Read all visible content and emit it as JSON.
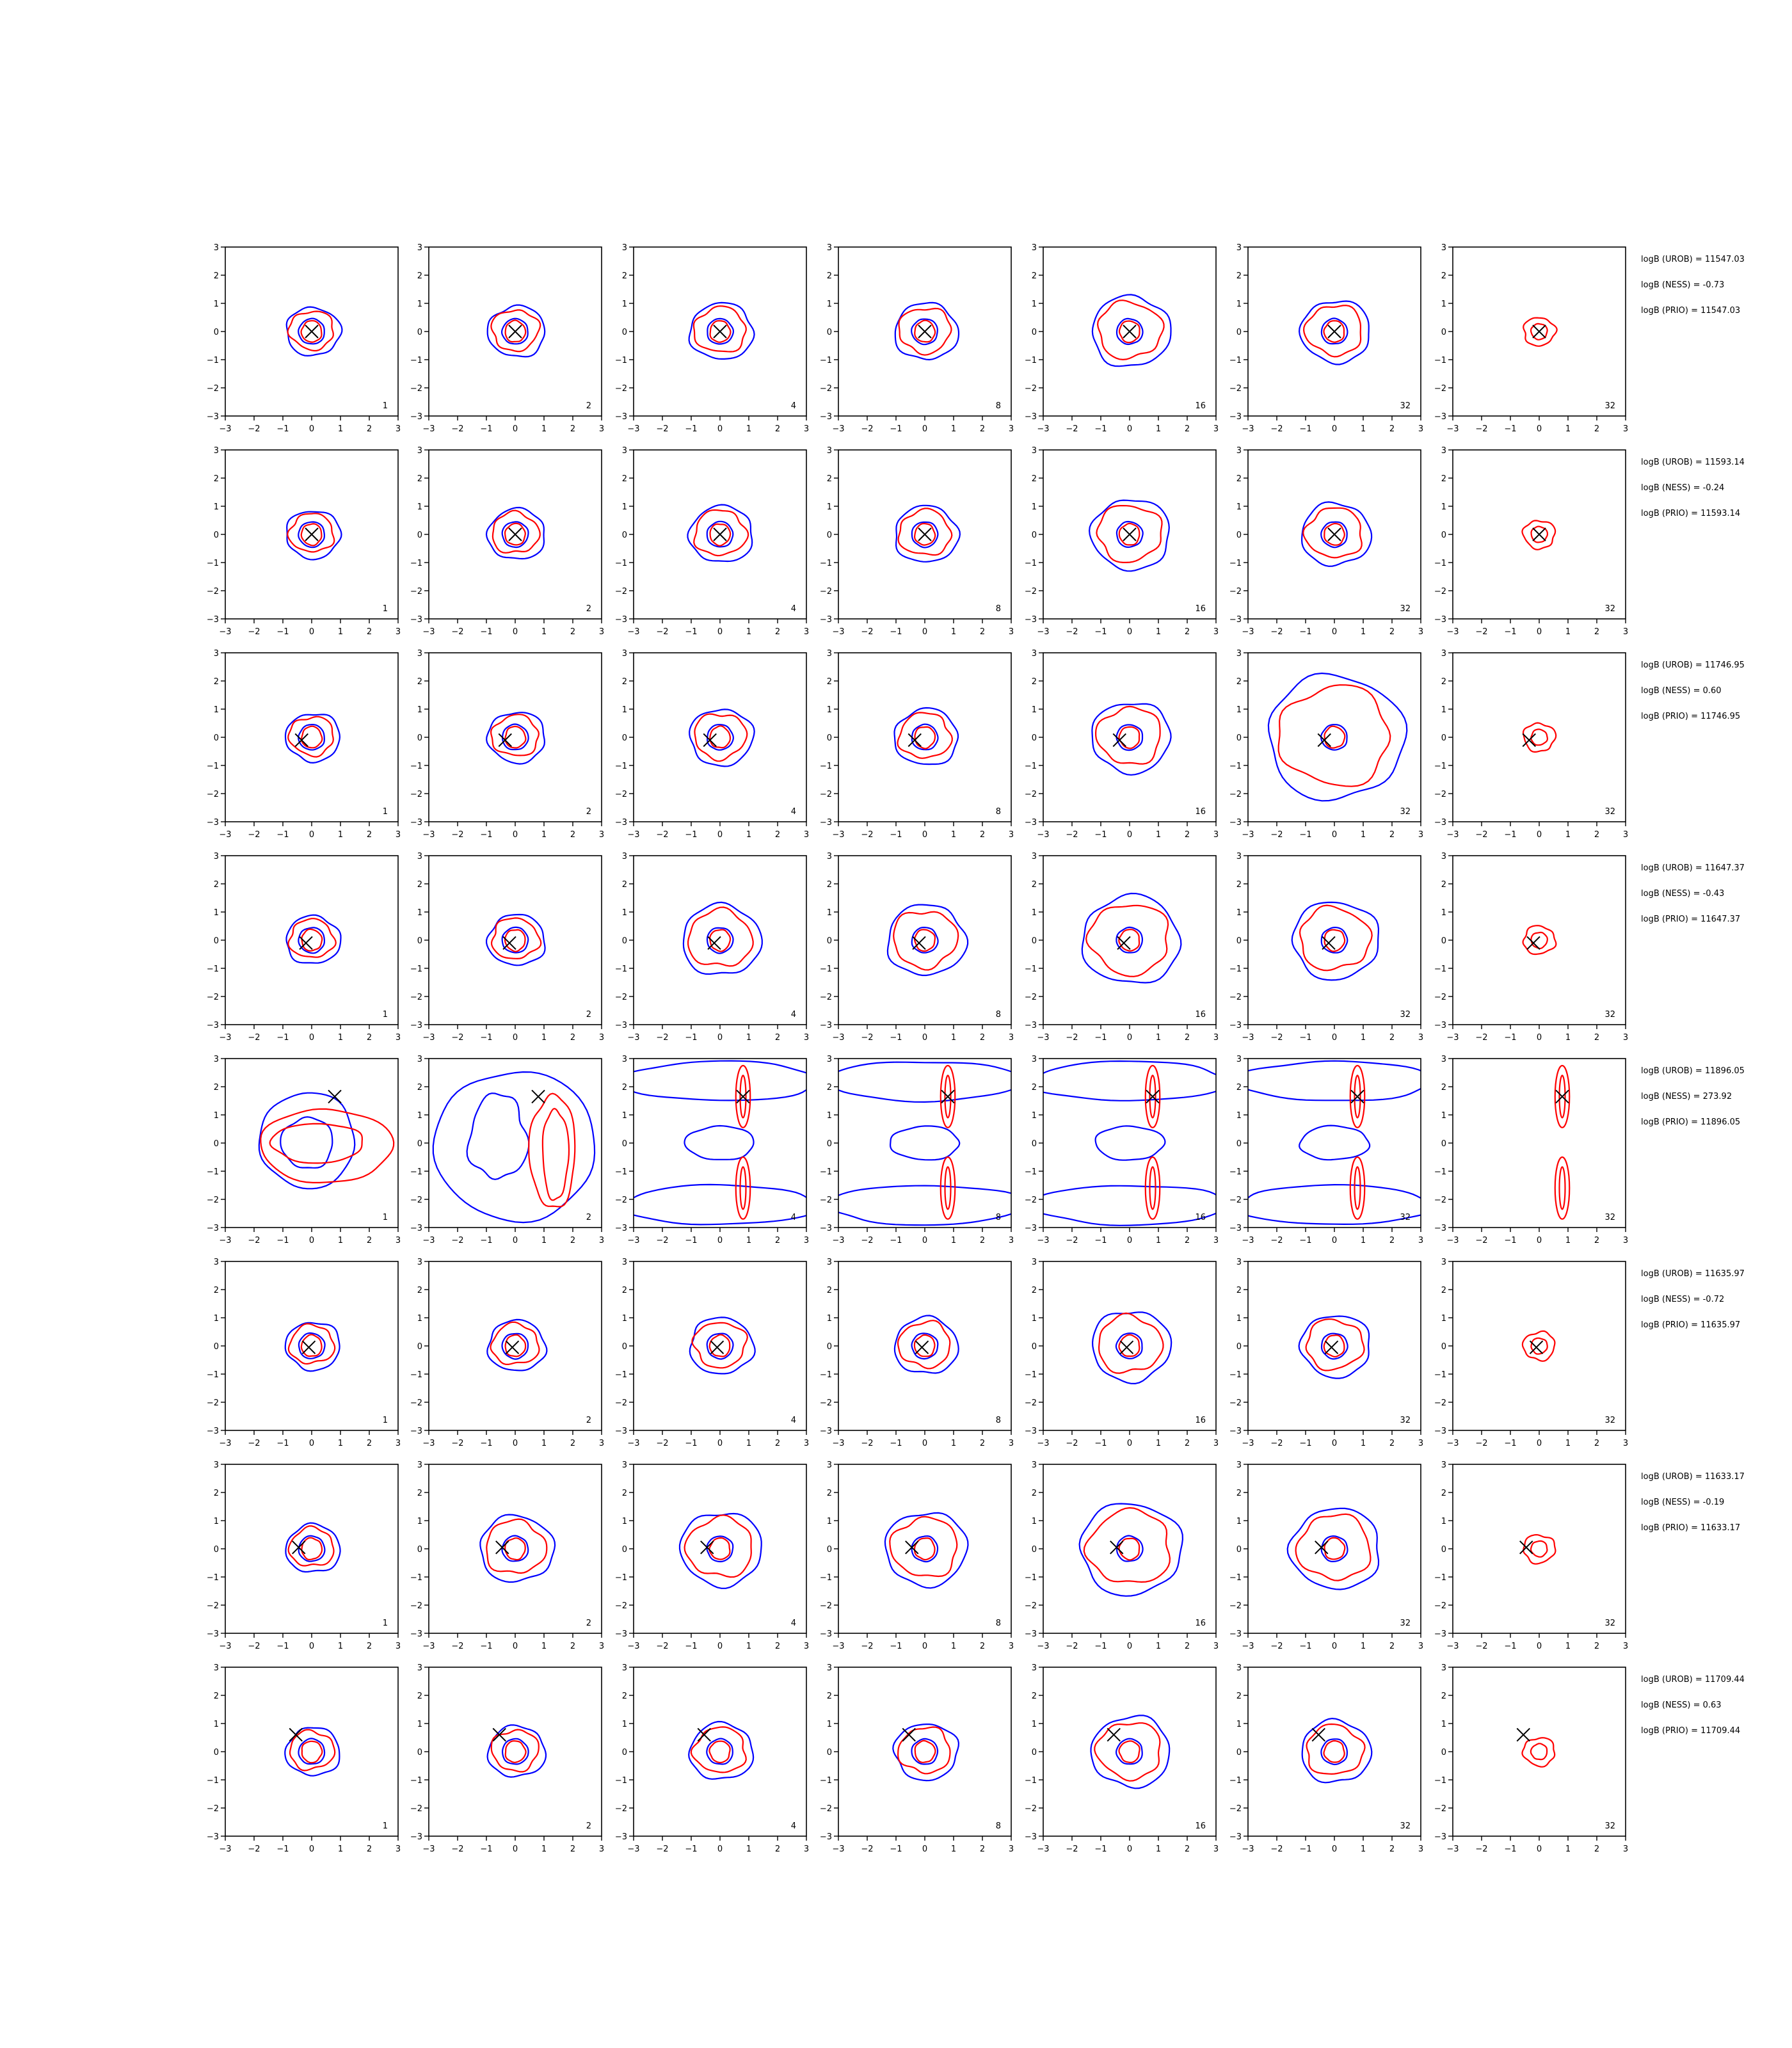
{
  "figure": {
    "background": "#ffffff",
    "curve_colors": [
      "#0000ff",
      "#ff0000"
    ],
    "marker_color": "#000000"
  },
  "chart_data": {
    "type": "contour-grid",
    "rows": 8,
    "cols": 7,
    "xlim": [
      -3,
      3
    ],
    "ylim": [
      -3,
      3
    ],
    "x_ticks": [
      "−3",
      "−2",
      "−1",
      "0",
      "1",
      "2",
      "3"
    ],
    "y_ticks": [
      "3",
      "2",
      "1",
      "0",
      "−1",
      "−2",
      "−3"
    ],
    "panel_numbers": [
      "1",
      "2",
      "4",
      "8",
      "16",
      "32",
      "32"
    ],
    "stat_labels": [
      "logB (UROB) = ",
      "logB (NESS) = ",
      "logB (PRIO) = "
    ],
    "stats": [
      [
        "11547.03",
        "-0.73",
        "11547.03"
      ],
      [
        "11593.14",
        "-0.24",
        "11593.14"
      ],
      [
        "11746.95",
        "0.60",
        "11746.95"
      ],
      [
        "11647.37",
        "-0.43",
        "11647.37"
      ],
      [
        "11896.05",
        "273.92",
        "11896.05"
      ],
      [
        "11635.97",
        "-0.72",
        "11635.97"
      ],
      [
        "11633.17",
        "-0.19",
        "11633.17"
      ],
      [
        "11709.44",
        "0.63",
        "11709.44"
      ]
    ],
    "markers": [
      {
        "x": 0.0,
        "y": 0.0
      },
      {
        "x": 0.0,
        "y": 0.0
      },
      {
        "x": -0.35,
        "y": -0.1
      },
      {
        "x": -0.2,
        "y": -0.1
      },
      {
        "x": 0.8,
        "y": 1.65
      },
      {
        "x": -0.1,
        "y": -0.05
      },
      {
        "x": -0.45,
        "y": 0.05
      },
      {
        "x": -0.55,
        "y": 0.6
      }
    ]
  }
}
